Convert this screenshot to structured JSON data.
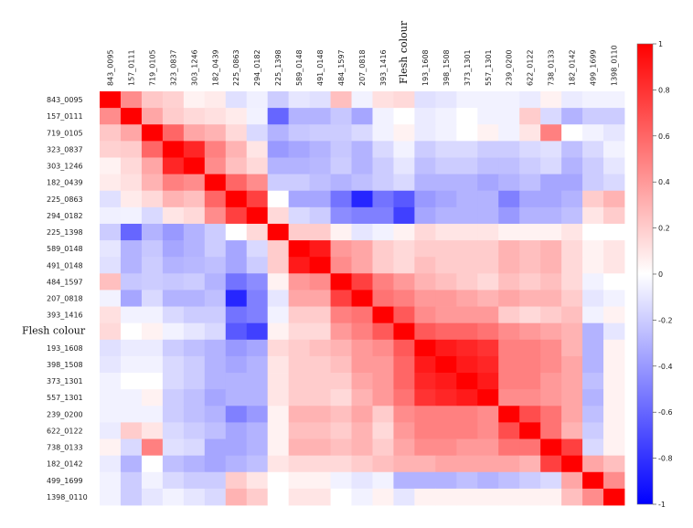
{
  "chart_data": {
    "type": "heatmap",
    "title": "",
    "highlight_label": "Flesh colour",
    "labels": [
      "843_0095",
      "157_0111",
      "719_0105",
      "323_0837",
      "303_1246",
      "182_0439",
      "225_0863",
      "294_0182",
      "225_1398",
      "589_0148",
      "491_0148",
      "484_1597",
      "207_0818",
      "393_1416",
      "Flesh colour",
      "193_1608",
      "398_1508",
      "373_1301",
      "557_1301",
      "239_0200",
      "622_0122",
      "738_0133",
      "182_0142",
      "499_1699",
      "1398_0110"
    ],
    "matrix": [
      [
        1.0,
        0.45,
        0.22,
        0.18,
        0.05,
        0.08,
        -0.12,
        -0.06,
        -0.2,
        -0.1,
        -0.12,
        0.25,
        -0.05,
        0.12,
        0.15,
        -0.12,
        -0.1,
        -0.05,
        -0.05,
        -0.05,
        -0.08,
        0.05,
        -0.08,
        -0.05,
        -0.05
      ],
      [
        0.45,
        1.0,
        0.35,
        0.2,
        0.15,
        0.12,
        0.08,
        -0.05,
        -0.6,
        -0.3,
        -0.3,
        -0.22,
        -0.35,
        -0.05,
        0.0,
        -0.08,
        -0.05,
        0.0,
        -0.05,
        -0.05,
        0.2,
        -0.15,
        -0.3,
        -0.2,
        -0.2
      ],
      [
        0.22,
        0.35,
        1.0,
        0.6,
        0.35,
        0.3,
        0.15,
        -0.15,
        -0.3,
        -0.22,
        -0.2,
        -0.2,
        -0.15,
        -0.05,
        0.05,
        -0.08,
        -0.05,
        0.0,
        0.05,
        -0.05,
        0.1,
        0.5,
        0.0,
        -0.05,
        -0.1
      ],
      [
        0.18,
        0.2,
        0.6,
        1.0,
        0.85,
        0.5,
        0.3,
        0.1,
        -0.4,
        -0.35,
        -0.3,
        -0.22,
        -0.3,
        -0.15,
        -0.05,
        -0.2,
        -0.15,
        -0.15,
        -0.2,
        -0.2,
        -0.15,
        -0.12,
        -0.25,
        -0.15,
        -0.05
      ],
      [
        0.05,
        0.15,
        0.35,
        0.85,
        1.0,
        0.45,
        0.25,
        0.15,
        -0.3,
        -0.3,
        -0.28,
        -0.2,
        -0.3,
        -0.2,
        -0.1,
        -0.25,
        -0.2,
        -0.2,
        -0.25,
        -0.25,
        -0.2,
        -0.15,
        -0.3,
        -0.2,
        -0.1
      ],
      [
        0.08,
        0.12,
        0.3,
        0.5,
        0.45,
        1.0,
        0.6,
        0.45,
        -0.2,
        -0.2,
        -0.25,
        -0.3,
        -0.25,
        -0.2,
        -0.15,
        -0.3,
        -0.3,
        -0.3,
        -0.35,
        -0.3,
        -0.25,
        -0.35,
        -0.35,
        -0.2,
        -0.15
      ],
      [
        -0.12,
        0.08,
        0.15,
        0.3,
        0.25,
        0.6,
        1.0,
        0.75,
        0.0,
        -0.35,
        -0.35,
        -0.55,
        -0.85,
        -0.55,
        -0.65,
        -0.4,
        -0.35,
        -0.3,
        -0.3,
        -0.5,
        -0.35,
        -0.35,
        -0.3,
        0.2,
        0.3
      ],
      [
        -0.06,
        -0.05,
        -0.15,
        0.1,
        0.15,
        0.45,
        0.75,
        1.0,
        0.15,
        -0.15,
        -0.2,
        -0.45,
        -0.5,
        -0.5,
        -0.75,
        -0.35,
        -0.3,
        -0.3,
        -0.3,
        -0.4,
        -0.3,
        -0.3,
        -0.25,
        0.1,
        0.2
      ],
      [
        -0.2,
        -0.6,
        -0.3,
        -0.4,
        -0.3,
        -0.2,
        0.0,
        0.15,
        1.0,
        0.2,
        0.2,
        0.05,
        -0.1,
        -0.05,
        0.05,
        0.15,
        0.1,
        0.1,
        0.1,
        0.05,
        0.05,
        0.05,
        0.1,
        0.0,
        0.0
      ],
      [
        -0.1,
        -0.3,
        -0.22,
        -0.35,
        -0.3,
        -0.2,
        -0.35,
        -0.15,
        0.2,
        1.0,
        0.9,
        0.4,
        0.35,
        0.2,
        0.15,
        0.2,
        0.2,
        0.2,
        0.2,
        0.3,
        0.25,
        0.3,
        0.15,
        0.05,
        0.1
      ],
      [
        -0.12,
        -0.3,
        -0.2,
        -0.3,
        -0.28,
        -0.25,
        -0.35,
        -0.2,
        0.2,
        0.9,
        1.0,
        0.45,
        0.35,
        0.2,
        0.15,
        0.25,
        0.2,
        0.2,
        0.2,
        0.3,
        0.25,
        0.3,
        0.15,
        0.05,
        0.1
      ],
      [
        0.25,
        -0.22,
        -0.2,
        -0.22,
        -0.2,
        -0.3,
        -0.55,
        -0.45,
        0.05,
        0.4,
        0.45,
        1.0,
        0.75,
        0.5,
        0.4,
        0.3,
        0.25,
        0.2,
        0.15,
        0.25,
        0.2,
        0.25,
        0.15,
        -0.05,
        0.0
      ],
      [
        -0.05,
        -0.35,
        -0.15,
        -0.3,
        -0.3,
        -0.25,
        -0.85,
        -0.5,
        -0.1,
        0.35,
        0.35,
        0.75,
        1.0,
        0.55,
        0.5,
        0.4,
        0.4,
        0.35,
        0.3,
        0.35,
        0.3,
        0.3,
        0.2,
        -0.1,
        -0.05
      ],
      [
        0.12,
        -0.05,
        -0.05,
        -0.15,
        -0.2,
        -0.2,
        -0.55,
        -0.5,
        -0.05,
        0.2,
        0.2,
        0.5,
        0.55,
        1.0,
        0.65,
        0.45,
        0.4,
        0.4,
        0.4,
        0.2,
        0.15,
        0.2,
        0.25,
        -0.05,
        0.05
      ],
      [
        0.15,
        0.0,
        0.05,
        -0.05,
        -0.1,
        -0.15,
        -0.65,
        -0.75,
        0.05,
        0.15,
        0.15,
        0.4,
        0.5,
        0.65,
        1.0,
        0.65,
        0.6,
        0.6,
        0.55,
        0.45,
        0.4,
        0.35,
        0.3,
        -0.3,
        -0.1
      ],
      [
        -0.12,
        -0.08,
        -0.08,
        -0.2,
        -0.25,
        -0.3,
        -0.4,
        -0.35,
        0.15,
        0.2,
        0.25,
        0.3,
        0.4,
        0.45,
        0.65,
        1.0,
        0.9,
        0.85,
        0.8,
        0.5,
        0.5,
        0.45,
        0.3,
        -0.3,
        0.05
      ],
      [
        -0.1,
        -0.05,
        -0.05,
        -0.15,
        -0.2,
        -0.3,
        -0.35,
        -0.3,
        0.1,
        0.2,
        0.2,
        0.25,
        0.4,
        0.4,
        0.6,
        0.9,
        1.0,
        0.9,
        0.85,
        0.5,
        0.5,
        0.45,
        0.35,
        -0.3,
        0.05
      ],
      [
        -0.05,
        0.0,
        0.0,
        -0.15,
        -0.2,
        -0.3,
        -0.3,
        -0.3,
        0.1,
        0.2,
        0.2,
        0.2,
        0.35,
        0.4,
        0.6,
        0.85,
        0.9,
        1.0,
        0.9,
        0.5,
        0.5,
        0.4,
        0.35,
        -0.25,
        0.05
      ],
      [
        -0.05,
        -0.05,
        0.05,
        -0.2,
        -0.25,
        -0.35,
        -0.3,
        -0.3,
        0.1,
        0.2,
        0.2,
        0.15,
        0.3,
        0.4,
        0.55,
        0.8,
        0.85,
        0.9,
        1.0,
        0.45,
        0.45,
        0.4,
        0.35,
        -0.3,
        0.05
      ],
      [
        -0.05,
        -0.05,
        -0.05,
        -0.2,
        -0.25,
        -0.3,
        -0.5,
        -0.4,
        0.05,
        0.3,
        0.3,
        0.25,
        0.35,
        0.2,
        0.45,
        0.5,
        0.5,
        0.5,
        0.45,
        1.0,
        0.7,
        0.55,
        0.35,
        -0.25,
        0.05
      ],
      [
        -0.08,
        0.2,
        0.1,
        -0.15,
        -0.2,
        -0.25,
        -0.35,
        -0.3,
        0.05,
        0.25,
        0.25,
        0.2,
        0.3,
        0.15,
        0.4,
        0.5,
        0.5,
        0.5,
        0.45,
        0.7,
        1.0,
        0.55,
        0.3,
        -0.2,
        0.05
      ],
      [
        0.05,
        -0.15,
        0.5,
        -0.12,
        -0.15,
        -0.35,
        -0.35,
        -0.3,
        0.05,
        0.3,
        0.3,
        0.25,
        0.3,
        0.2,
        0.35,
        0.45,
        0.45,
        0.4,
        0.4,
        0.55,
        0.55,
        1.0,
        0.75,
        -0.15,
        0.05
      ],
      [
        -0.08,
        -0.3,
        0.0,
        -0.25,
        -0.3,
        -0.35,
        -0.3,
        -0.25,
        0.1,
        0.15,
        0.15,
        0.15,
        0.2,
        0.25,
        0.3,
        0.3,
        0.35,
        0.35,
        0.35,
        0.35,
        0.3,
        0.75,
        1.0,
        0.35,
        0.25
      ],
      [
        -0.05,
        -0.2,
        -0.05,
        -0.15,
        -0.2,
        -0.2,
        0.2,
        0.1,
        0.0,
        0.05,
        0.05,
        -0.05,
        -0.1,
        -0.05,
        -0.3,
        -0.3,
        -0.3,
        -0.25,
        -0.3,
        -0.25,
        -0.2,
        -0.15,
        0.35,
        1.0,
        0.45
      ],
      [
        -0.05,
        -0.2,
        -0.1,
        -0.05,
        -0.1,
        -0.15,
        0.3,
        0.2,
        0.0,
        0.1,
        0.1,
        0.0,
        -0.05,
        0.05,
        -0.1,
        0.05,
        0.05,
        0.05,
        0.05,
        0.05,
        0.05,
        0.05,
        0.25,
        0.45,
        1.0
      ]
    ],
    "colorbar": {
      "min": -1,
      "max": 1,
      "ticks": [
        1,
        0.8,
        0.6,
        0.4,
        0.2,
        0,
        -0.2,
        -0.4,
        -0.6,
        -0.8,
        -1
      ],
      "colors": {
        "low": "#0000ff",
        "mid": "#ffffff",
        "high": "#ff0000"
      }
    },
    "legend_placement": "right"
  }
}
